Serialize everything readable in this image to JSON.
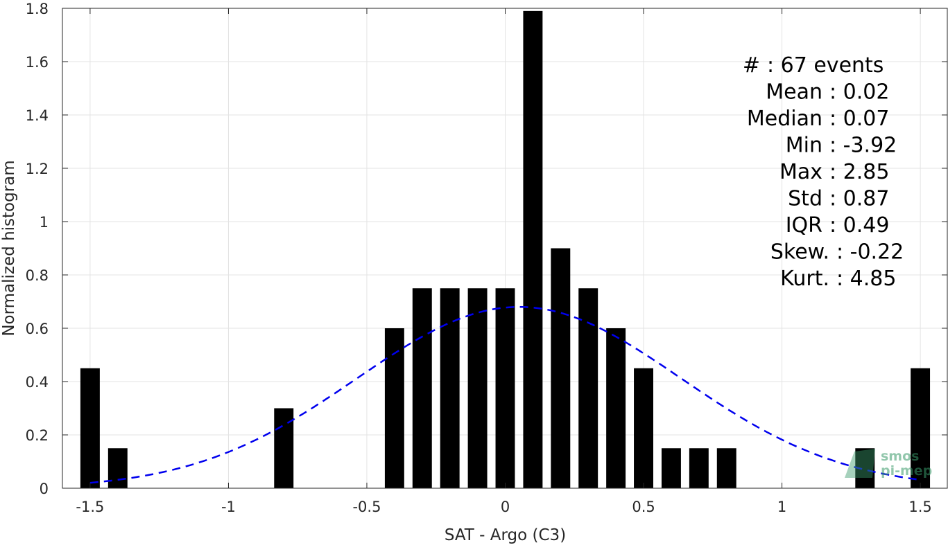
{
  "chart_data": {
    "type": "bar",
    "xlabel": "SAT - Argo (C3)",
    "ylabel": "Normalized histogram",
    "xlim": [
      -1.6,
      1.6
    ],
    "ylim": [
      0,
      1.8
    ],
    "xticks": [
      -1.5,
      -1,
      -0.5,
      0,
      0.5,
      1,
      1.5
    ],
    "xtick_labels": [
      "-1.5",
      "-1",
      "-0.5",
      "0",
      "0.5",
      "1",
      "1.5"
    ],
    "yticks": [
      0,
      0.2,
      0.4,
      0.6,
      0.8,
      1,
      1.2,
      1.4,
      1.6,
      1.8
    ],
    "ytick_labels": [
      "0",
      "0.2",
      "0.4",
      "0.6",
      "0.8",
      "1",
      "1.2",
      "1.4",
      "1.6",
      "1.8"
    ],
    "grid": true,
    "bar_width": 0.07,
    "bars": [
      {
        "x": -1.5,
        "y": 0.45
      },
      {
        "x": -1.4,
        "y": 0.15
      },
      {
        "x": -0.8,
        "y": 0.3
      },
      {
        "x": -0.4,
        "y": 0.6
      },
      {
        "x": -0.3,
        "y": 0.75
      },
      {
        "x": -0.2,
        "y": 0.75
      },
      {
        "x": -0.1,
        "y": 0.75
      },
      {
        "x": 0.0,
        "y": 0.75
      },
      {
        "x": 0.1,
        "y": 1.79
      },
      {
        "x": 0.2,
        "y": 0.9
      },
      {
        "x": 0.3,
        "y": 0.75
      },
      {
        "x": 0.4,
        "y": 0.6
      },
      {
        "x": 0.5,
        "y": 0.45
      },
      {
        "x": 0.6,
        "y": 0.15
      },
      {
        "x": 0.7,
        "y": 0.15
      },
      {
        "x": 0.8,
        "y": 0.15
      },
      {
        "x": 1.3,
        "y": 0.15
      },
      {
        "x": 1.5,
        "y": 0.45
      }
    ],
    "fit": {
      "type": "gaussian",
      "mean": 0.05,
      "peak": 0.68,
      "sigma": 0.585,
      "x_range": [
        -1.5,
        1.5
      ],
      "color": "#0000ee"
    },
    "bar_color": "#000000",
    "stats_lines": [
      "#  : 67 events",
      "Mean : 0.02",
      "Median : 0.07",
      "Min : -3.92",
      "Max : 2.85",
      "Std : 0.87",
      "IQR : 0.49",
      "Skew. : -0.22",
      "Kurt. : 4.85"
    ]
  },
  "watermark": {
    "line1": "smos",
    "line2": "pi-mep",
    "color": "#3a9a6a"
  }
}
